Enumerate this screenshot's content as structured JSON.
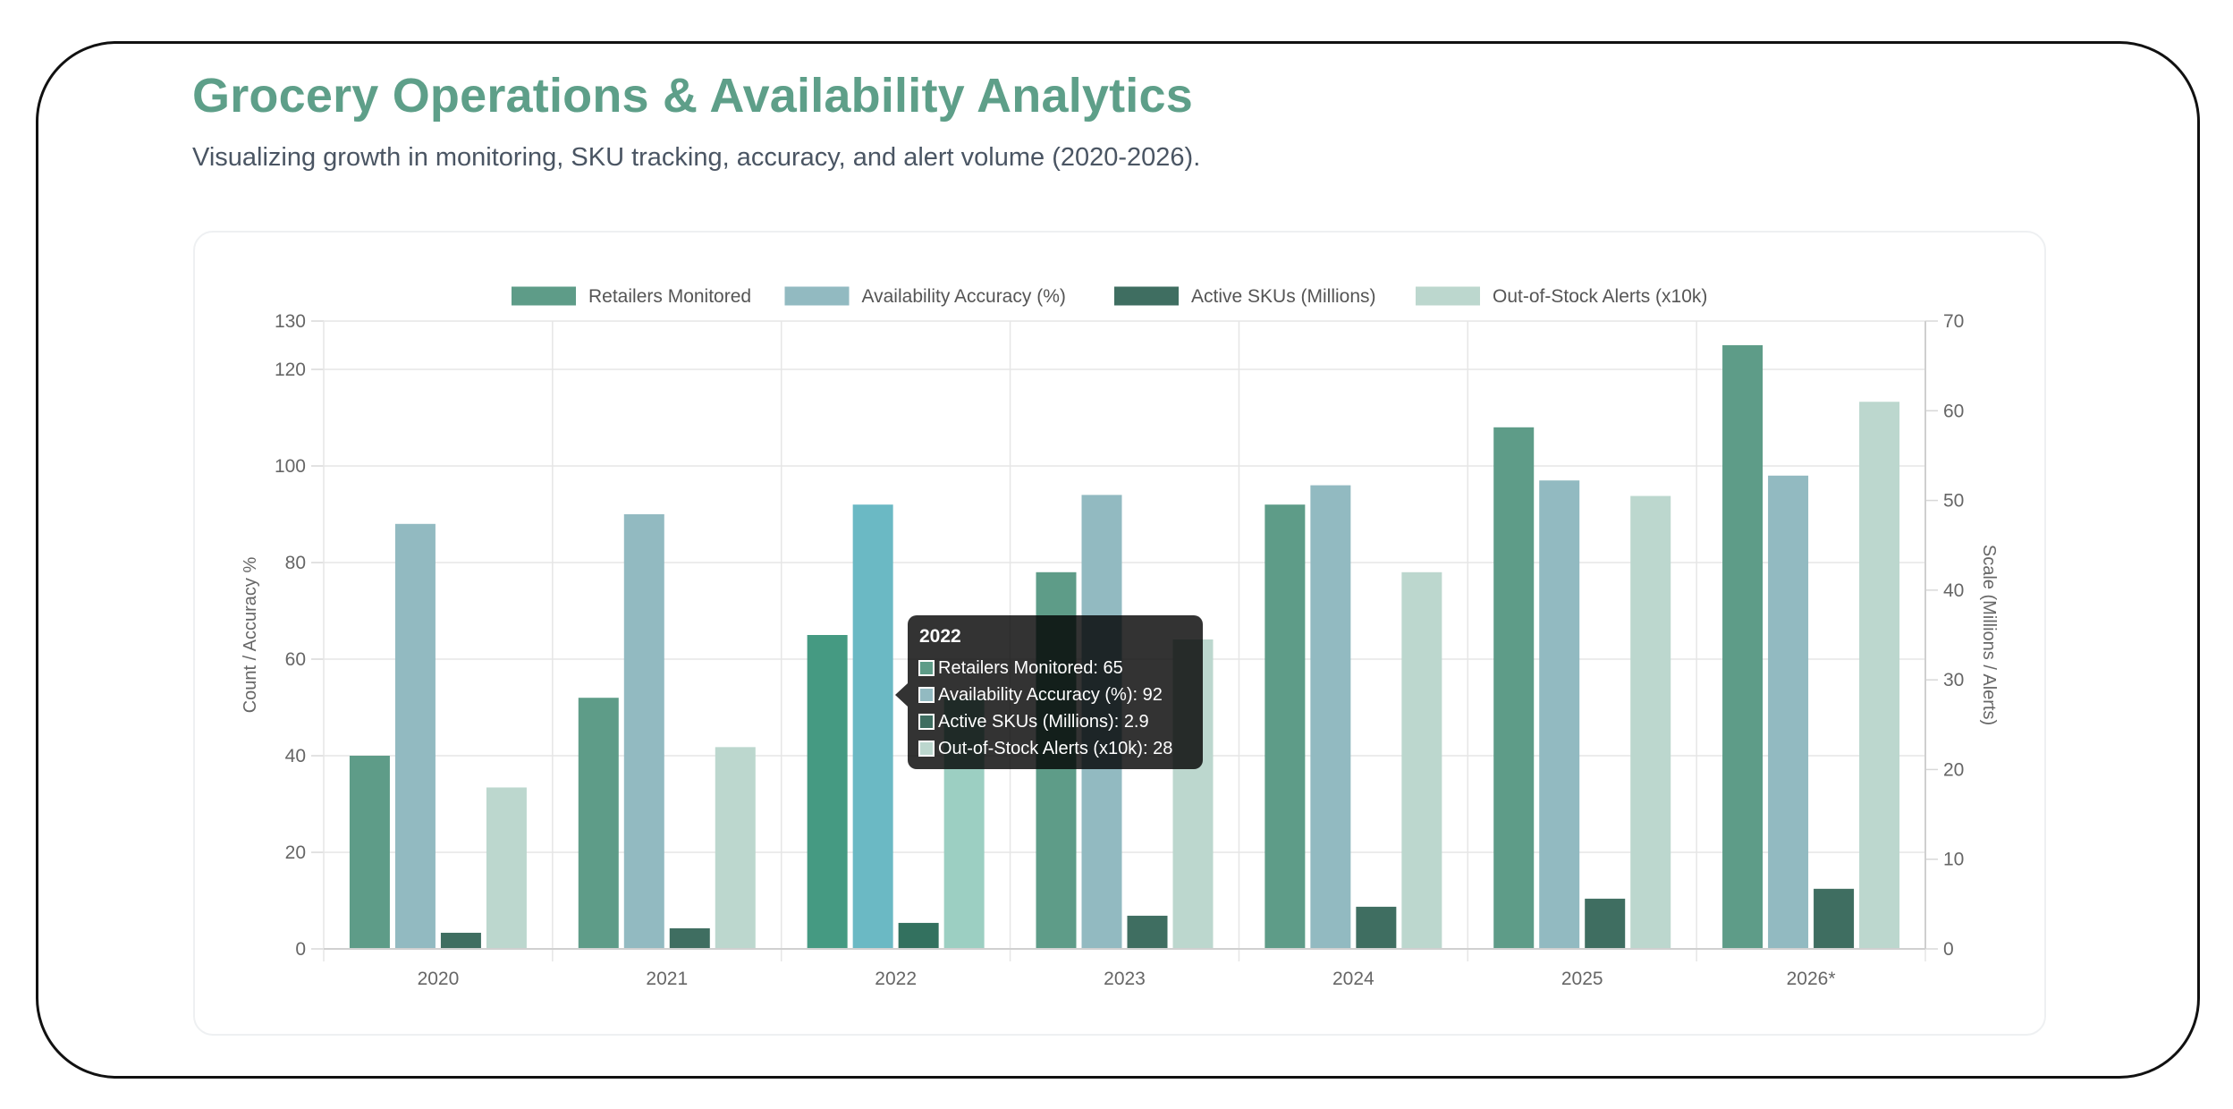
{
  "header": {
    "title": "Grocery Operations & Availability Analytics",
    "subtitle": "Visualizing growth in monitoring, SKU tracking, accuracy, and alert volume (2020-2026)."
  },
  "chart_data": {
    "type": "bar",
    "categories": [
      "2020",
      "2021",
      "2022",
      "2023",
      "2024",
      "2025",
      "2026*"
    ],
    "series": [
      {
        "name": "Retailers Monitored",
        "axis": "left",
        "color": "#5e9c88",
        "highlight_color": "#459a82",
        "values": [
          40,
          52,
          65,
          78,
          92,
          108,
          125
        ]
      },
      {
        "name": "Availability Accuracy (%)",
        "axis": "left",
        "color": "#92bac1",
        "highlight_color": "#6bb9c4",
        "values": [
          88,
          90,
          92,
          94,
          96,
          97,
          98
        ]
      },
      {
        "name": "Active SKUs (Millions)",
        "axis": "right",
        "color": "#3f6e61",
        "highlight_color": "#33715f",
        "values": [
          1.8,
          2.3,
          2.9,
          3.7,
          4.7,
          5.6,
          6.7
        ]
      },
      {
        "name": "Out-of-Stock Alerts (x10k)",
        "axis": "right",
        "color": "#bcd7ce",
        "highlight_color": "#9ccfc2",
        "values": [
          18,
          22.5,
          28,
          34.5,
          42,
          50.5,
          61
        ]
      }
    ],
    "y_left": {
      "label": "Count / Accuracy %",
      "min": 0,
      "max": 130,
      "ticks": [
        0,
        20,
        40,
        60,
        80,
        100,
        120,
        130
      ]
    },
    "y_right": {
      "label": "Scale (Millions / Alerts)",
      "min": 0,
      "max": 70,
      "ticks": [
        0,
        10,
        20,
        30,
        40,
        50,
        60,
        70
      ]
    },
    "legend_position": "top-center",
    "grid": true,
    "highlighted_category": "2022"
  },
  "tooltip": {
    "title": "2022",
    "rows": [
      {
        "text": "Retailers Monitored: 65",
        "color": "#5e9c88"
      },
      {
        "text": "Availability Accuracy (%): 92",
        "color": "#92bac1"
      },
      {
        "text": "Active SKUs (Millions): 2.9",
        "color": "#3f6e61"
      },
      {
        "text": "Out-of-Stock Alerts (x10k): 28",
        "color": "#bcd7ce"
      }
    ]
  }
}
